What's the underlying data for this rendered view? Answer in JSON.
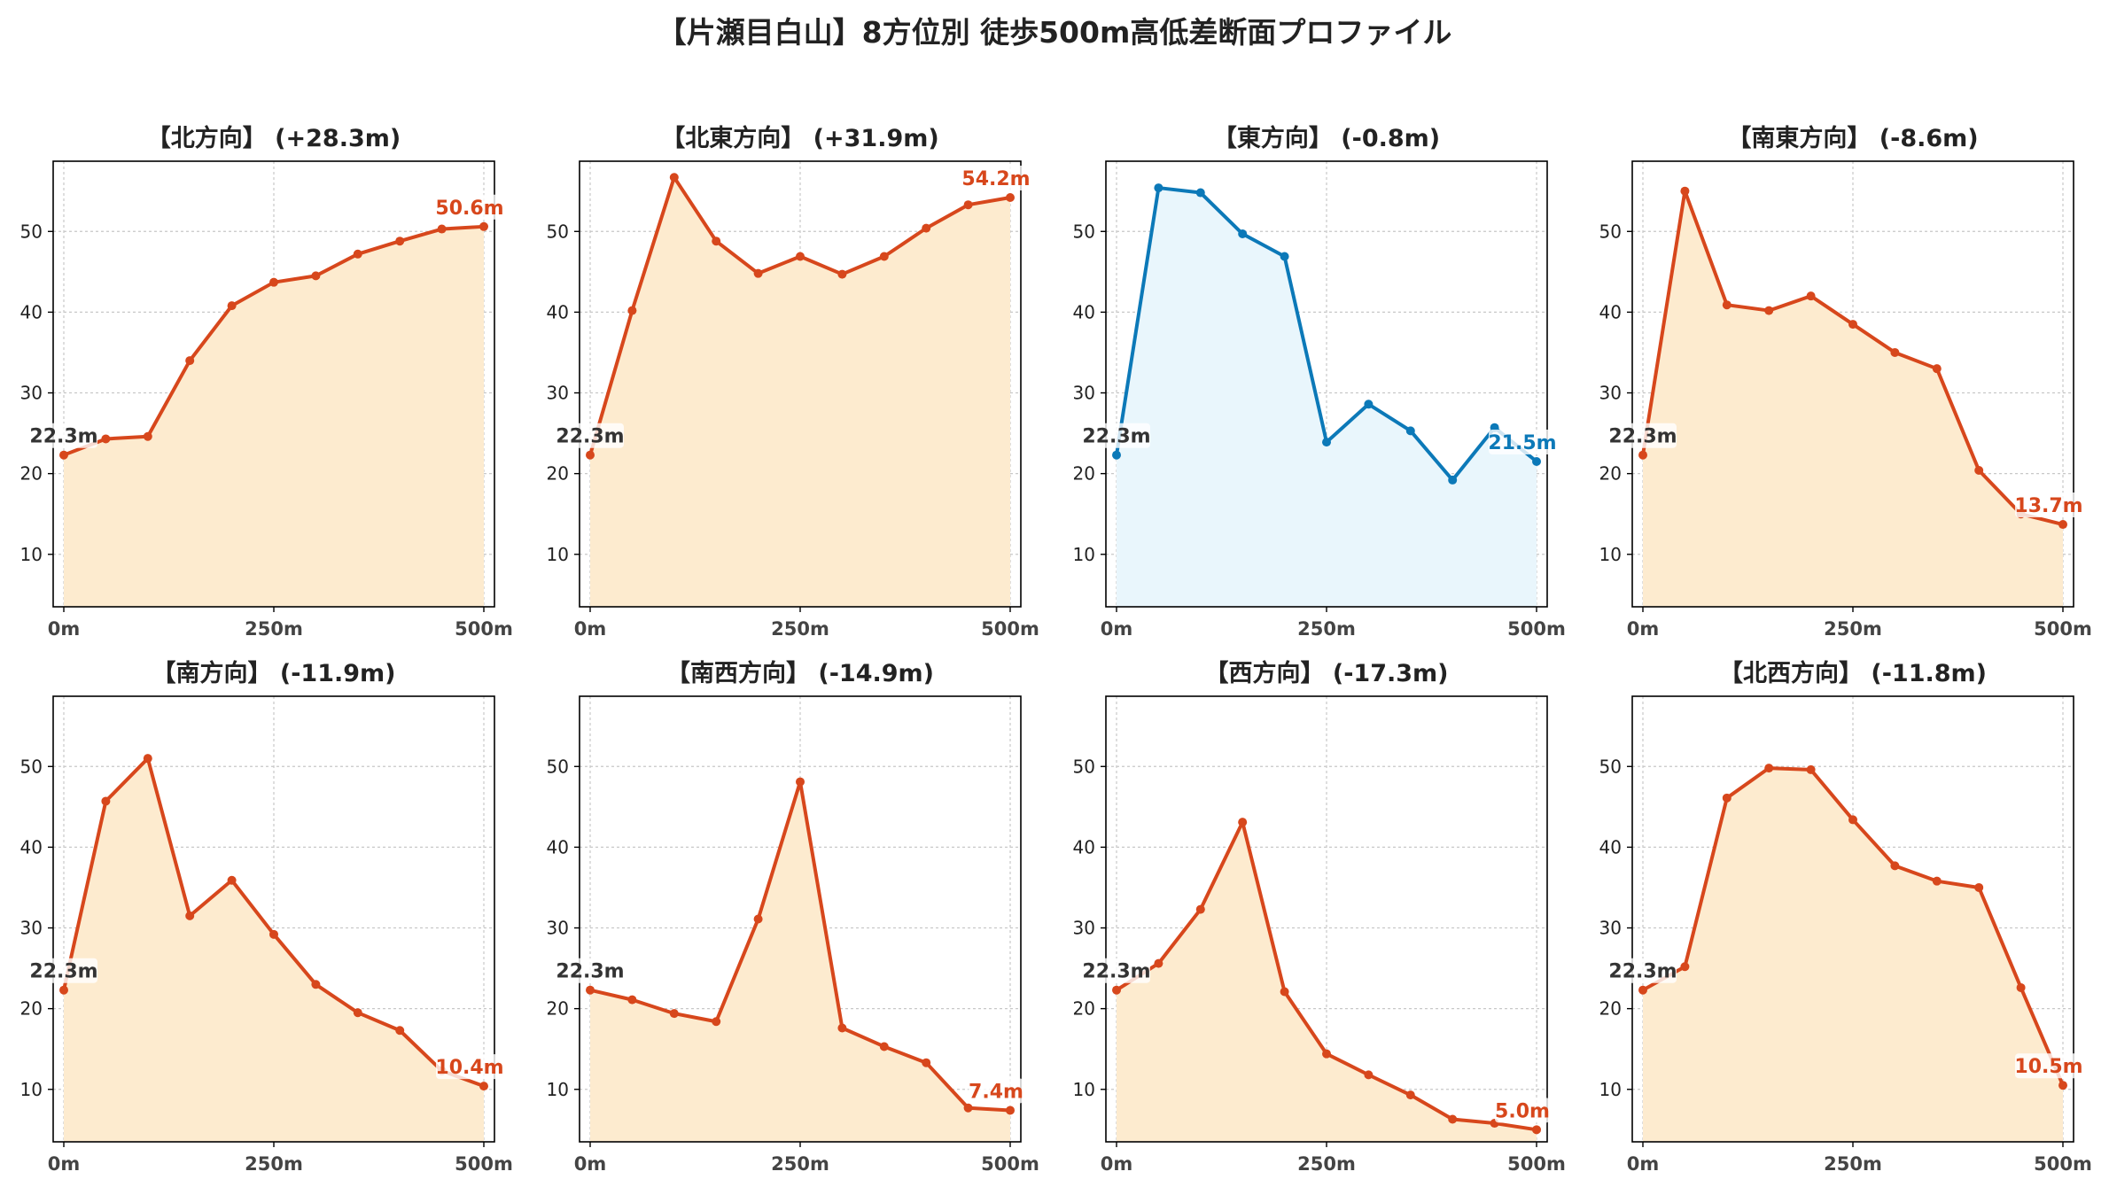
{
  "title": "【片瀬目白山】8方位別 徒歩500m高低差断面プロファイル",
  "colors": {
    "up_line": "#d7471c",
    "up_fill": "#fdebcf",
    "down_line": "#0c79b8",
    "down_fill": "#e9f6fc",
    "grid": "#c8c8c8",
    "start_label": "#333333"
  },
  "chart_data": [
    {
      "type": "area",
      "title": "【北方向】 (+28.3m)",
      "x": [
        0,
        50,
        100,
        150,
        200,
        250,
        300,
        350,
        400,
        450,
        500
      ],
      "values": [
        22.3,
        24.3,
        24.6,
        34.0,
        40.8,
        43.7,
        44.5,
        47.2,
        48.8,
        50.3,
        50.6
      ],
      "x_tick_labels": [
        "0m",
        "250m",
        "500m"
      ],
      "y_ticks": [
        10,
        20,
        30,
        40,
        50
      ],
      "ylim": [
        3.5,
        58.7
      ],
      "start_label": "22.3m",
      "end_label": "50.6m",
      "color_scheme": "up",
      "grid": true
    },
    {
      "type": "area",
      "title": "【北東方向】 (+31.9m)",
      "x": [
        0,
        50,
        100,
        150,
        200,
        250,
        300,
        350,
        400,
        450,
        500
      ],
      "values": [
        22.3,
        40.2,
        56.7,
        48.8,
        44.8,
        46.9,
        44.7,
        46.9,
        50.4,
        53.3,
        54.2
      ],
      "x_tick_labels": [
        "0m",
        "250m",
        "500m"
      ],
      "y_ticks": [
        10,
        20,
        30,
        40,
        50
      ],
      "ylim": [
        3.5,
        58.7
      ],
      "start_label": "22.3m",
      "end_label": "54.2m",
      "color_scheme": "up",
      "grid": true
    },
    {
      "type": "area",
      "title": "【東方向】 (-0.8m)",
      "x": [
        0,
        50,
        100,
        150,
        200,
        250,
        300,
        350,
        400,
        450,
        500
      ],
      "values": [
        22.3,
        55.4,
        54.8,
        49.7,
        46.9,
        23.9,
        28.6,
        25.3,
        19.2,
        25.7,
        21.5
      ],
      "x_tick_labels": [
        "0m",
        "250m",
        "500m"
      ],
      "y_ticks": [
        10,
        20,
        30,
        40,
        50
      ],
      "ylim": [
        3.5,
        58.7
      ],
      "start_label": "22.3m",
      "end_label": "21.5m",
      "color_scheme": "down",
      "grid": true
    },
    {
      "type": "area",
      "title": "【南東方向】 (-8.6m)",
      "x": [
        0,
        50,
        100,
        150,
        200,
        250,
        300,
        350,
        400,
        450,
        500
      ],
      "values": [
        22.3,
        55.0,
        40.9,
        40.2,
        42.0,
        38.5,
        35.0,
        33.0,
        20.4,
        15.0,
        13.7
      ],
      "x_tick_labels": [
        "0m",
        "250m",
        "500m"
      ],
      "y_ticks": [
        10,
        20,
        30,
        40,
        50
      ],
      "ylim": [
        3.5,
        58.7
      ],
      "start_label": "22.3m",
      "end_label": "13.7m",
      "color_scheme": "up",
      "grid": true
    },
    {
      "type": "area",
      "title": "【南方向】 (-11.9m)",
      "x": [
        0,
        50,
        100,
        150,
        200,
        250,
        300,
        350,
        400,
        450,
        500
      ],
      "values": [
        22.3,
        45.7,
        51.0,
        31.5,
        35.9,
        29.2,
        23.0,
        19.5,
        17.3,
        12.3,
        10.4
      ],
      "x_tick_labels": [
        "0m",
        "250m",
        "500m"
      ],
      "y_ticks": [
        10,
        20,
        30,
        40,
        50
      ],
      "ylim": [
        3.5,
        58.7
      ],
      "start_label": "22.3m",
      "end_label": "10.4m",
      "color_scheme": "up",
      "grid": true
    },
    {
      "type": "area",
      "title": "【南西方向】 (-14.9m)",
      "x": [
        0,
        50,
        100,
        150,
        200,
        250,
        300,
        350,
        400,
        450,
        500
      ],
      "values": [
        22.3,
        21.1,
        19.4,
        18.4,
        31.1,
        48.1,
        17.6,
        15.3,
        13.3,
        7.7,
        7.4
      ],
      "x_tick_labels": [
        "0m",
        "250m",
        "500m"
      ],
      "y_ticks": [
        10,
        20,
        30,
        40,
        50
      ],
      "ylim": [
        3.5,
        58.7
      ],
      "start_label": "22.3m",
      "end_label": "7.4m",
      "color_scheme": "up",
      "grid": true
    },
    {
      "type": "area",
      "title": "【西方向】 (-17.3m)",
      "x": [
        0,
        50,
        100,
        150,
        200,
        250,
        300,
        350,
        400,
        450,
        500
      ],
      "values": [
        22.3,
        25.6,
        32.3,
        43.1,
        22.1,
        14.4,
        11.8,
        9.3,
        6.3,
        5.8,
        5.0
      ],
      "x_tick_labels": [
        "0m",
        "250m",
        "500m"
      ],
      "y_ticks": [
        10,
        20,
        30,
        40,
        50
      ],
      "ylim": [
        3.5,
        58.7
      ],
      "start_label": "22.3m",
      "end_label": "5.0m",
      "color_scheme": "up",
      "grid": true
    },
    {
      "type": "area",
      "title": "【北西方向】 (-11.8m)",
      "x": [
        0,
        50,
        100,
        150,
        200,
        250,
        300,
        350,
        400,
        450,
        500
      ],
      "values": [
        22.3,
        25.2,
        46.1,
        49.8,
        49.6,
        43.4,
        37.7,
        35.8,
        35.0,
        22.6,
        10.5
      ],
      "x_tick_labels": [
        "0m",
        "250m",
        "500m"
      ],
      "y_ticks": [
        10,
        20,
        30,
        40,
        50
      ],
      "ylim": [
        3.5,
        58.7
      ],
      "start_label": "22.3m",
      "end_label": "10.5m",
      "color_scheme": "up",
      "grid": true
    }
  ]
}
